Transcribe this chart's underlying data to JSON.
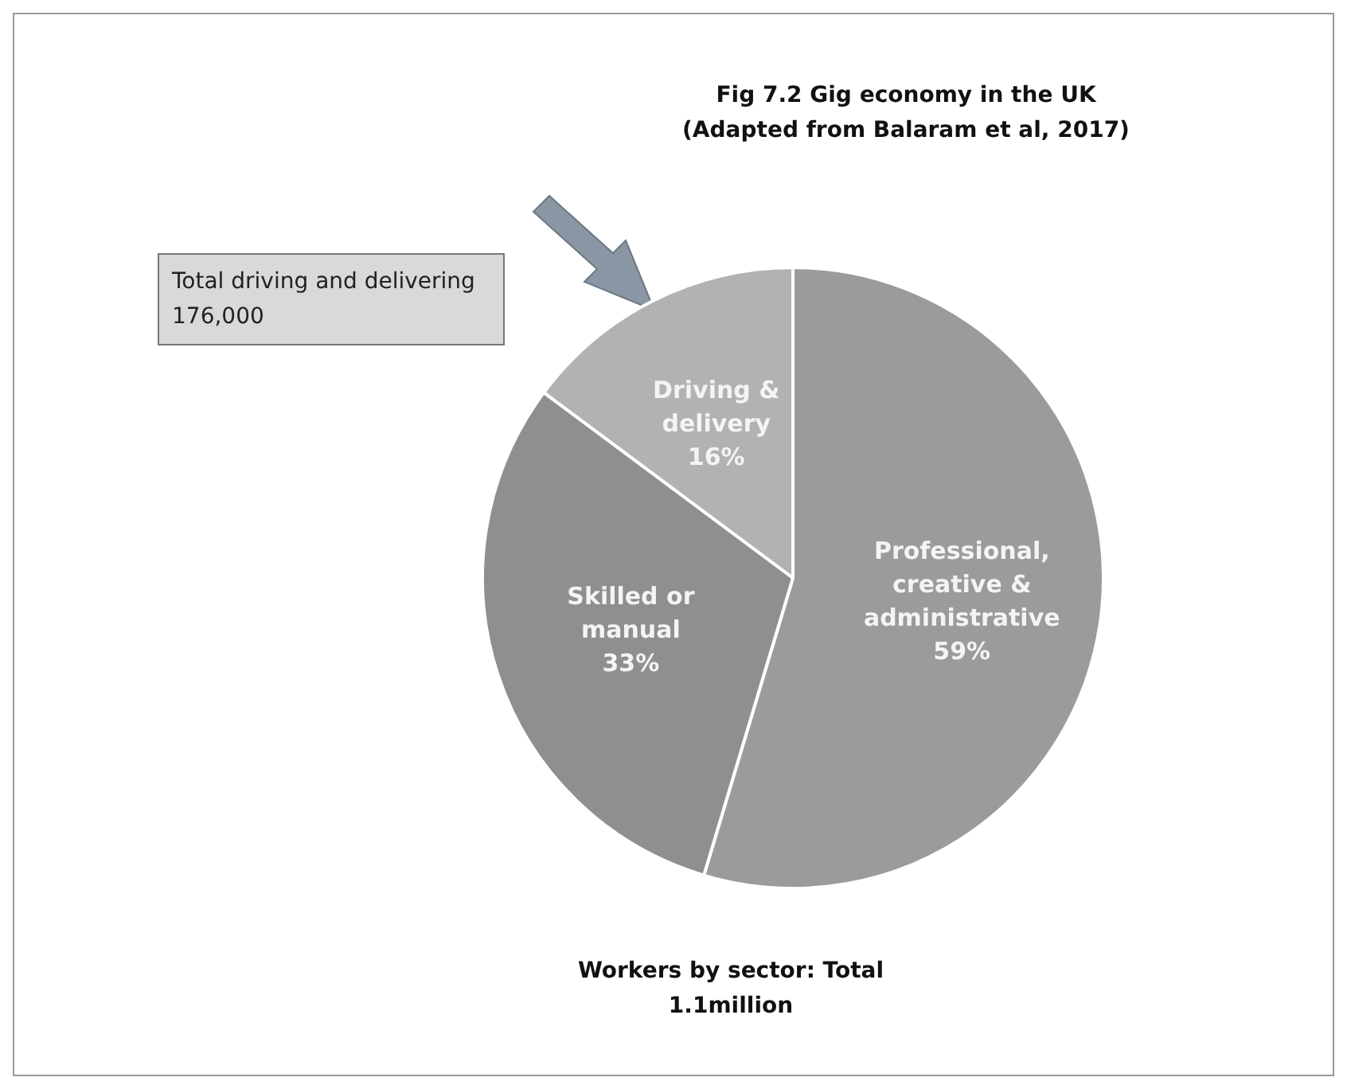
{
  "chart_data": {
    "type": "pie",
    "title": "Fig 7.2 Gig economy in the UK",
    "subtitle": "(Adapted from Balaram et al, 2017)",
    "categories": [
      "Professional, creative & administrative",
      "Skilled or manual",
      "Driving & delivery"
    ],
    "values": [
      59,
      33,
      16
    ],
    "value_labels": [
      "59%",
      "33%",
      "16%"
    ],
    "colors": [
      "#9b9b9b",
      "#8f8f8f",
      "#b2b2b2"
    ],
    "annotations": [
      "Total driving and delivering 176,000",
      "Workers by sector: Total 1.1million"
    ],
    "legend": false
  }
}
